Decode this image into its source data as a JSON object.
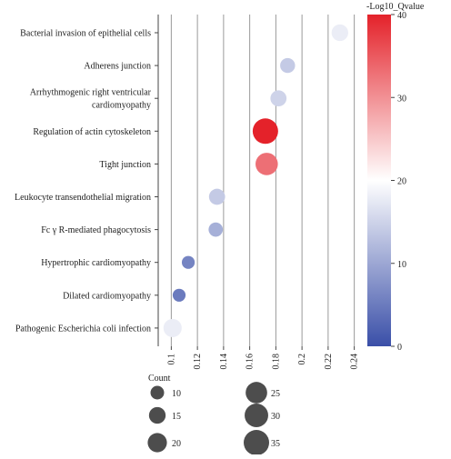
{
  "chart_data": {
    "type": "scatter",
    "title": "",
    "xlabel": "",
    "ylabel": "",
    "xlim": [
      0.09,
      0.25
    ],
    "x_ticks": [
      "0.1",
      "0.12",
      "0.14",
      "0.16",
      "0.18",
      "0.2",
      "0.22",
      "0.24"
    ],
    "x_tick_values": [
      0.1,
      0.12,
      0.14,
      0.16,
      0.18,
      0.2,
      0.22,
      0.24
    ],
    "grid": true,
    "categories": [
      "Bacterial invasion of epithelial cells",
      "Adherens junction",
      "Arrhythmogenic right ventricular cardiomyopathy",
      "Regulation of actin cytoskeleton",
      "Tight junction",
      "Leukocyte transendothelial migration",
      "Fc γ R-mediated phagocytosis",
      "Hypertrophic cardiomyopathy",
      "Dilated cardiomyopathy",
      "Pathogenic Escherichia coli infection"
    ],
    "category_lines": [
      [
        "Bacterial invasion of epithelial cells"
      ],
      [
        "Adherens junction"
      ],
      [
        "Arrhythmogenic right ventricular",
        "cardiomyopathy"
      ],
      [
        "Regulation of actin cytoskeleton"
      ],
      [
        "Tight junction"
      ],
      [
        "Leukocyte transendothelial migration"
      ],
      [
        "Fc γ R-mediated phagocytosis"
      ],
      [
        "Hypertrophic cardiomyopathy"
      ],
      [
        "Dilated cardiomyopathy"
      ],
      [
        "Pathogenic Escherichia coli infection"
      ]
    ],
    "points": [
      {
        "category": "Bacterial invasion of epithelial cells",
        "x": 0.229,
        "count": 15,
        "log10_qvalue": 18
      },
      {
        "category": "Adherens junction",
        "x": 0.189,
        "count": 12,
        "log10_qvalue": 14
      },
      {
        "category": "Arrhythmogenic right ventricular cardiomyopathy",
        "x": 0.182,
        "count": 14,
        "log10_qvalue": 15
      },
      {
        "category": "Regulation of actin cytoskeleton",
        "x": 0.172,
        "count": 35,
        "log10_qvalue": 40
      },
      {
        "category": "Tight junction",
        "x": 0.173,
        "count": 27,
        "log10_qvalue": 33
      },
      {
        "category": "Leukocyte transendothelial migration",
        "x": 0.135,
        "count": 14,
        "log10_qvalue": 14
      },
      {
        "category": "Fc γ R-mediated phagocytosis",
        "x": 0.134,
        "count": 11,
        "log10_qvalue": 11
      },
      {
        "category": "Hypertrophic cardiomyopathy",
        "x": 0.113,
        "count": 9,
        "log10_qvalue": 6
      },
      {
        "category": "Dilated cardiomyopathy",
        "x": 0.106,
        "count": 9,
        "log10_qvalue": 5
      },
      {
        "category": "Pathogenic Escherichia coli infection",
        "x": 0.101,
        "count": 18,
        "log10_qvalue": 18
      }
    ],
    "color_scale": {
      "title": "-Log10_Qvalue",
      "min": 0,
      "max": 40,
      "mid": 20,
      "ticks": [
        0,
        10,
        20,
        30,
        40
      ],
      "tick_labels": [
        "0",
        "10",
        "20",
        "30",
        "40"
      ],
      "low_color": "#3a4fa8",
      "mid_color": "#ffffff",
      "high_color": "#e4222a"
    },
    "size_legend": {
      "title": "Count",
      "values": [
        10,
        15,
        20,
        25,
        30,
        35
      ],
      "labels": [
        "10",
        "15",
        "20",
        "25",
        "30",
        "35"
      ]
    }
  }
}
